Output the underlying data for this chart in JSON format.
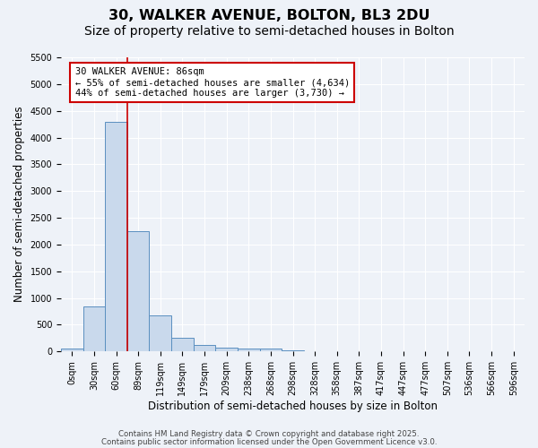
{
  "title1": "30, WALKER AVENUE, BOLTON, BL3 2DU",
  "title2": "Size of property relative to semi-detached houses in Bolton",
  "xlabel": "Distribution of semi-detached houses by size in Bolton",
  "ylabel": "Number of semi-detached properties",
  "bar_values": [
    50,
    850,
    4300,
    2250,
    680,
    260,
    120,
    70,
    60,
    50,
    30,
    0,
    0,
    0,
    0,
    0,
    0,
    0,
    0,
    0,
    0
  ],
  "bar_labels": [
    "0sqm",
    "30sqm",
    "60sqm",
    "89sqm",
    "119sqm",
    "149sqm",
    "179sqm",
    "209sqm",
    "238sqm",
    "268sqm",
    "298sqm",
    "328sqm",
    "358sqm",
    "387sqm",
    "417sqm",
    "447sqm",
    "477sqm",
    "507sqm",
    "536sqm",
    "566sqm",
    "596sqm"
  ],
  "bar_color": "#c9d9ec",
  "bar_edge_color": "#5a8fc0",
  "ylim": [
    0,
    5500
  ],
  "yticks": [
    0,
    500,
    1000,
    1500,
    2000,
    2500,
    3000,
    3500,
    4000,
    4500,
    5000,
    5500
  ],
  "red_line_x": 2.5,
  "annotation_text": "30 WALKER AVENUE: 86sqm\n← 55% of semi-detached houses are smaller (4,634)\n44% of semi-detached houses are larger (3,730) →",
  "annotation_box_color": "#ffffff",
  "annotation_box_edge": "#cc0000",
  "footnote1": "Contains HM Land Registry data © Crown copyright and database right 2025.",
  "footnote2": "Contains public sector information licensed under the Open Government Licence v3.0.",
  "bg_color": "#eef2f8",
  "grid_color": "#ffffff",
  "title_fontsize": 11.5,
  "subtitle_fontsize": 10,
  "tick_fontsize": 7,
  "ylabel_fontsize": 8.5,
  "xlabel_fontsize": 8.5,
  "footnote_fontsize": 6.2
}
